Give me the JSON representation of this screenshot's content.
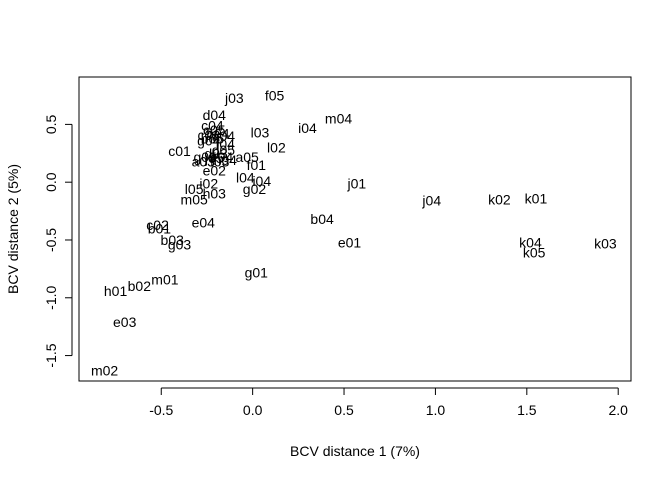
{
  "chart_data": {
    "type": "scatter",
    "title": "",
    "xlabel": "BCV distance 1 (7%)",
    "ylabel": "BCV distance 2 (5%)",
    "xlim": [
      -0.95,
      2.07
    ],
    "ylim": [
      -1.72,
      0.91
    ],
    "x_ticks": [
      -0.5,
      0.0,
      0.5,
      1.0,
      1.5,
      2.0
    ],
    "x_tick_labels": [
      "-0.5",
      "0.0",
      "0.5",
      "1.0",
      "1.5",
      "2.0"
    ],
    "y_ticks": [
      -1.5,
      -1.0,
      -0.5,
      0.0,
      0.5
    ],
    "y_tick_labels": [
      "-1.5",
      "-1.0",
      "-0.5",
      "0.0",
      "0.5"
    ],
    "grid": false,
    "legend": "none",
    "point_style": "text-labels",
    "points": [
      {
        "label": "j03",
        "x": -0.1,
        "y": 0.73
      },
      {
        "label": "f05",
        "x": 0.12,
        "y": 0.75
      },
      {
        "label": "d04",
        "x": -0.21,
        "y": 0.58
      },
      {
        "label": "m04",
        "x": 0.47,
        "y": 0.55
      },
      {
        "label": "i04",
        "x": 0.3,
        "y": 0.47
      },
      {
        "label": "c04",
        "x": -0.22,
        "y": 0.49
      },
      {
        "label": "c05",
        "x": -0.21,
        "y": 0.45
      },
      {
        "label": "b04",
        "x": -0.19,
        "y": 0.42
      },
      {
        "label": "l03",
        "x": 0.04,
        "y": 0.43
      },
      {
        "label": "a04",
        "x": -0.16,
        "y": 0.4
      },
      {
        "label": "c03",
        "x": -0.24,
        "y": 0.41
      },
      {
        "label": "b05",
        "x": -0.22,
        "y": 0.38
      },
      {
        "label": "g04",
        "x": -0.24,
        "y": 0.36
      },
      {
        "label": "f04",
        "x": -0.15,
        "y": 0.33
      },
      {
        "label": "l02",
        "x": 0.13,
        "y": 0.3
      },
      {
        "label": "c01",
        "x": -0.4,
        "y": 0.27
      },
      {
        "label": "d05",
        "x": -0.16,
        "y": 0.28
      },
      {
        "label": "d03",
        "x": -0.2,
        "y": 0.25
      },
      {
        "label": "e04",
        "x": -0.17,
        "y": 0.22
      },
      {
        "label": "a05",
        "x": -0.03,
        "y": 0.22
      },
      {
        "label": "g05",
        "x": -0.26,
        "y": 0.22
      },
      {
        "label": "h04",
        "x": -0.15,
        "y": 0.19
      },
      {
        "label": "a03",
        "x": -0.27,
        "y": 0.18
      },
      {
        "label": "f03",
        "x": -0.18,
        "y": 0.18
      },
      {
        "label": "j05",
        "x": -0.21,
        "y": 0.21
      },
      {
        "label": "f01",
        "x": 0.02,
        "y": 0.15
      },
      {
        "label": "e02",
        "x": -0.21,
        "y": 0.1
      },
      {
        "label": "l04",
        "x": -0.04,
        "y": 0.04
      },
      {
        "label": "i04",
        "x": 0.05,
        "y": 0.01
      },
      {
        "label": "i02",
        "x": -0.24,
        "y": -0.01
      },
      {
        "label": "g02",
        "x": 0.01,
        "y": -0.06
      },
      {
        "label": "l05",
        "x": -0.32,
        "y": -0.06
      },
      {
        "label": "h03",
        "x": -0.21,
        "y": -0.1
      },
      {
        "label": "m05",
        "x": -0.32,
        "y": -0.15
      },
      {
        "label": "j01",
        "x": 0.57,
        "y": -0.01
      },
      {
        "label": "j04",
        "x": 0.98,
        "y": -0.16
      },
      {
        "label": "k02",
        "x": 1.35,
        "y": -0.15
      },
      {
        "label": "k01",
        "x": 1.55,
        "y": -0.14
      },
      {
        "label": "b04",
        "x": 0.38,
        "y": -0.32
      },
      {
        "label": "e04",
        "x": -0.27,
        "y": -0.35
      },
      {
        "label": "c02",
        "x": -0.52,
        "y": -0.37
      },
      {
        "label": "b01",
        "x": -0.51,
        "y": -0.4
      },
      {
        "label": "b03",
        "x": -0.44,
        "y": -0.5
      },
      {
        "label": "g03",
        "x": -0.4,
        "y": -0.54
      },
      {
        "label": "e01",
        "x": 0.53,
        "y": -0.52
      },
      {
        "label": "k04",
        "x": 1.52,
        "y": -0.52
      },
      {
        "label": "k03",
        "x": 1.93,
        "y": -0.53
      },
      {
        "label": "k05",
        "x": 1.54,
        "y": -0.61
      },
      {
        "label": "g01",
        "x": 0.02,
        "y": -0.78
      },
      {
        "label": "m01",
        "x": -0.48,
        "y": -0.84
      },
      {
        "label": "b02",
        "x": -0.62,
        "y": -0.9
      },
      {
        "label": "h01",
        "x": -0.75,
        "y": -0.94
      },
      {
        "label": "e03",
        "x": -0.7,
        "y": -1.21
      },
      {
        "label": "m02",
        "x": -0.81,
        "y": -1.63
      }
    ]
  }
}
